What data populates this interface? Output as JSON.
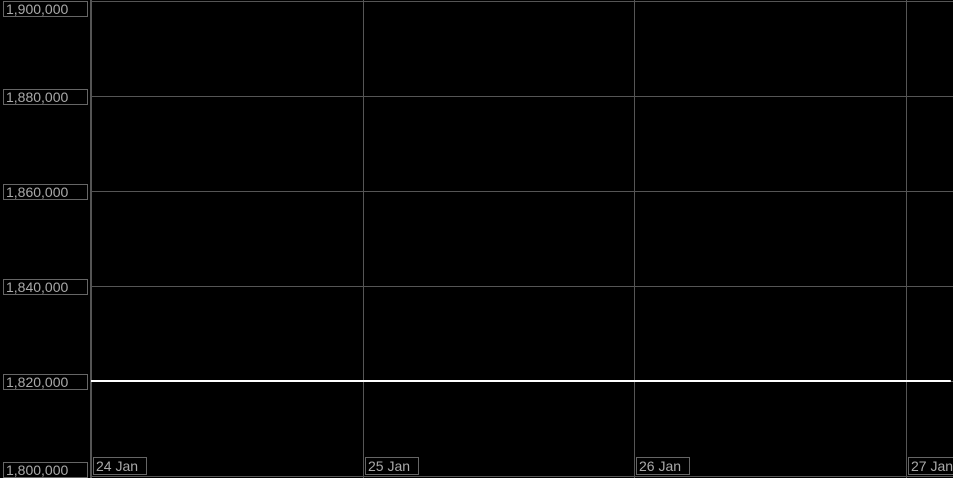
{
  "chart_data": {
    "type": "line",
    "title": "",
    "xlabel": "",
    "ylabel": "",
    "ylim": [
      1800000,
      1900000
    ],
    "xlim": [
      "2024-01-24T00:00",
      "2024-01-27T04:00"
    ],
    "grid": true,
    "y_ticks": [
      "1,900,000",
      "1,880,000",
      "1,860,000",
      "1,840,000",
      "1,820,000",
      "1,800,000"
    ],
    "y_tick_values": [
      1900000,
      1880000,
      1860000,
      1840000,
      1820000,
      1800000
    ],
    "x_ticks": [
      "24 Jan",
      "25 Jan",
      "26 Jan",
      "27 Jan"
    ],
    "series": [
      {
        "x": [
          "2024-01-24T00:00",
          "2024-01-27T04:00"
        ],
        "y": [
          1820000,
          1820000
        ]
      }
    ],
    "colors": {
      "background": "#000000",
      "grid": "#555555",
      "line": "#ffffff",
      "label_text": "#aaaaaa",
      "label_border": "#666666"
    }
  }
}
